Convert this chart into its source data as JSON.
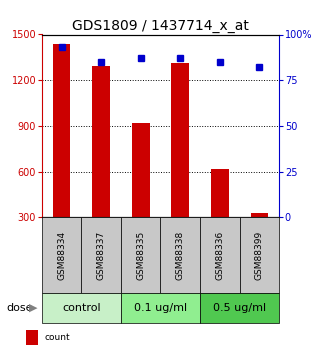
{
  "title": "GDS1809 / 1437714_x_at",
  "samples": [
    "GSM88334",
    "GSM88337",
    "GSM88335",
    "GSM88338",
    "GSM88336",
    "GSM88399"
  ],
  "counts": [
    1440,
    1290,
    920,
    1310,
    615,
    330
  ],
  "percentile_ranks": [
    93,
    85,
    87,
    87,
    85,
    82
  ],
  "groups": [
    {
      "label": "control",
      "indices": [
        0,
        1
      ],
      "color": "#c8f0c8"
    },
    {
      "label": "0.1 ug/ml",
      "indices": [
        2,
        3
      ],
      "color": "#90ee90"
    },
    {
      "label": "0.5 ug/ml",
      "indices": [
        4,
        5
      ],
      "color": "#50c850"
    }
  ],
  "dose_label": "dose",
  "ylim_left": [
    300,
    1500
  ],
  "ylim_right": [
    0,
    100
  ],
  "yticks_left": [
    300,
    600,
    900,
    1200,
    1500
  ],
  "yticks_right": [
    0,
    25,
    50,
    75,
    100
  ],
  "bar_color": "#cc0000",
  "dot_color": "#0000cc",
  "bar_width": 0.45,
  "background_label": "#c8c8c8",
  "title_fontsize": 10,
  "tick_fontsize": 7,
  "sample_fontsize": 6.5,
  "label_fontsize": 8,
  "legend_fontsize": 6.5
}
